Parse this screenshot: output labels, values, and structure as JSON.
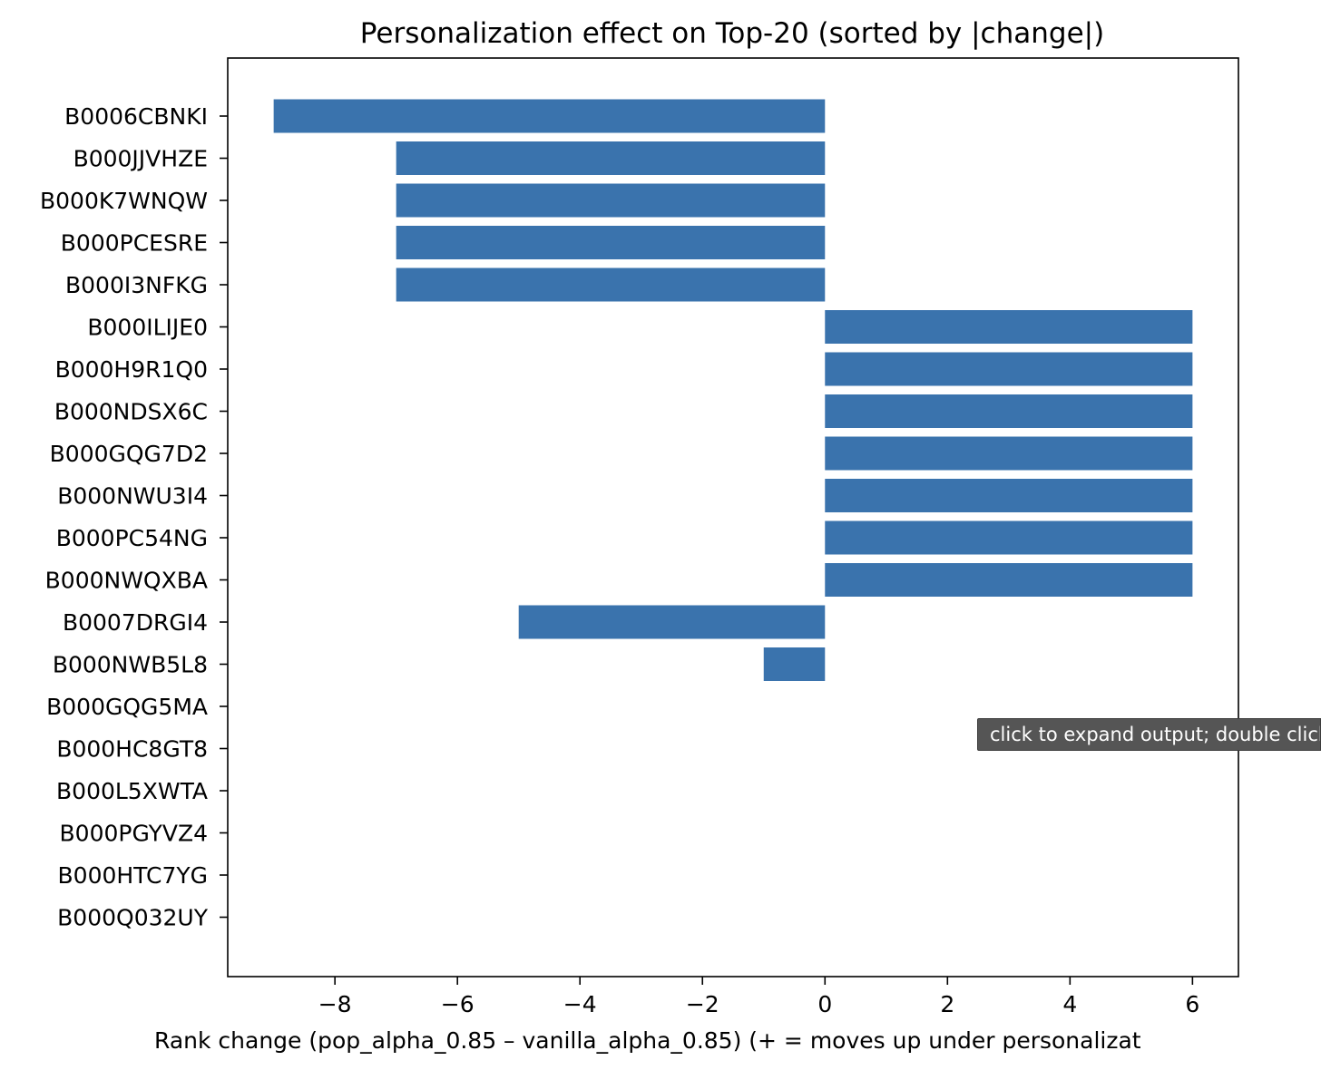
{
  "colors": {
    "bar": "#3a73ad",
    "axes": "#000000",
    "background": "#ffffff",
    "tooltip_bg": "#555555",
    "tooltip_text": "#ffffff"
  },
  "tooltip": {
    "text": "click to expand output; double click"
  },
  "chart_data": {
    "type": "bar",
    "orientation": "horizontal",
    "title": "Personalization effect on Top-20 (sorted by |change|)",
    "xlabel": "Rank change (pop_alpha_0.85 – vanilla_alpha_0.85)  (+ = moves up under personalizat",
    "ylabel": "",
    "xlim": [
      -9.75,
      6.75
    ],
    "xticks": [
      -8,
      -6,
      -4,
      -2,
      0,
      2,
      4,
      6
    ],
    "xtick_labels": [
      "−8",
      "−6",
      "−4",
      "−2",
      "0",
      "2",
      "4",
      "6"
    ],
    "grid": false,
    "categories": [
      "B0006CBNKI",
      "B000JJVHZE",
      "B000K7WNQW",
      "B000PCESRE",
      "B000I3NFKG",
      "B000ILIJE0",
      "B000H9R1Q0",
      "B000NDSX6C",
      "B000GQG7D2",
      "B000NWU3I4",
      "B000PC54NG",
      "B000NWQXBA",
      "B0007DRGI4",
      "B000NWB5L8",
      "B000GQG5MA",
      "B000HC8GT8",
      "B000L5XWTA",
      "B000PGYVZ4",
      "B000HTC7YG",
      "B000Q032UY"
    ],
    "values": [
      -9,
      -7,
      -7,
      -7,
      -7,
      6,
      6,
      6,
      6,
      6,
      6,
      6,
      -5,
      -1,
      0,
      0,
      0,
      0,
      0,
      0
    ]
  }
}
